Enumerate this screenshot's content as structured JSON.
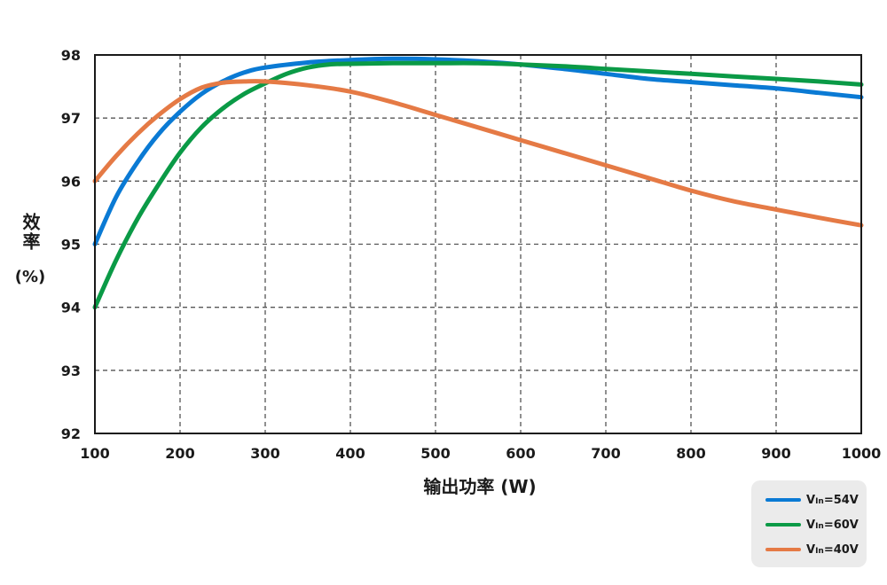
{
  "chart_data": {
    "type": "line",
    "xlabel": "输出功率 (W)",
    "ylabel_top": "效率",
    "ylabel_bottom": "(%)",
    "xlim": [
      100,
      1000
    ],
    "ylim": [
      92,
      98
    ],
    "xticks": [
      100,
      200,
      300,
      400,
      500,
      600,
      700,
      800,
      900,
      1000
    ],
    "yticks": [
      92,
      93,
      94,
      95,
      96,
      97,
      98
    ],
    "grid": true,
    "legend_position": "bottom-right",
    "series": [
      {
        "name": "VIn=54V",
        "legend_main": "V",
        "legend_sub": "In",
        "legend_rest": "=54V",
        "color": "#0a7ad4",
        "x": [
          100,
          125,
          150,
          175,
          200,
          225,
          250,
          275,
          300,
          350,
          400,
          450,
          500,
          550,
          600,
          650,
          700,
          750,
          800,
          850,
          900,
          950,
          1000
        ],
        "y": [
          95.0,
          95.75,
          96.3,
          96.75,
          97.1,
          97.38,
          97.58,
          97.72,
          97.8,
          97.88,
          97.92,
          97.94,
          97.93,
          97.9,
          97.85,
          97.78,
          97.7,
          97.62,
          97.57,
          97.52,
          97.47,
          97.4,
          97.33
        ]
      },
      {
        "name": "VIn=60V",
        "legend_main": "V",
        "legend_sub": "In",
        "legend_rest": "=60V",
        "color": "#0a9a46",
        "x": [
          100,
          125,
          150,
          175,
          200,
          225,
          250,
          275,
          300,
          325,
          350,
          375,
          400,
          450,
          500,
          550,
          600,
          650,
          700,
          750,
          800,
          850,
          900,
          950,
          1000
        ],
        "y": [
          94.0,
          94.75,
          95.4,
          95.95,
          96.45,
          96.85,
          97.15,
          97.38,
          97.55,
          97.7,
          97.8,
          97.85,
          97.86,
          97.87,
          97.87,
          97.87,
          97.85,
          97.82,
          97.78,
          97.74,
          97.7,
          97.66,
          97.62,
          97.58,
          97.53
        ]
      },
      {
        "name": "VIn=40V",
        "legend_main": "V",
        "legend_sub": "In",
        "legend_rest": "=40V",
        "color": "#e57a45",
        "x": [
          100,
          125,
          150,
          175,
          200,
          225,
          250,
          275,
          300,
          350,
          400,
          450,
          500,
          550,
          600,
          650,
          700,
          750,
          800,
          850,
          900,
          950,
          1000
        ],
        "y": [
          96.0,
          96.4,
          96.75,
          97.05,
          97.3,
          97.48,
          97.56,
          97.58,
          97.58,
          97.52,
          97.42,
          97.25,
          97.05,
          96.85,
          96.65,
          96.45,
          96.25,
          96.05,
          95.85,
          95.68,
          95.55,
          95.42,
          95.3
        ]
      }
    ]
  }
}
